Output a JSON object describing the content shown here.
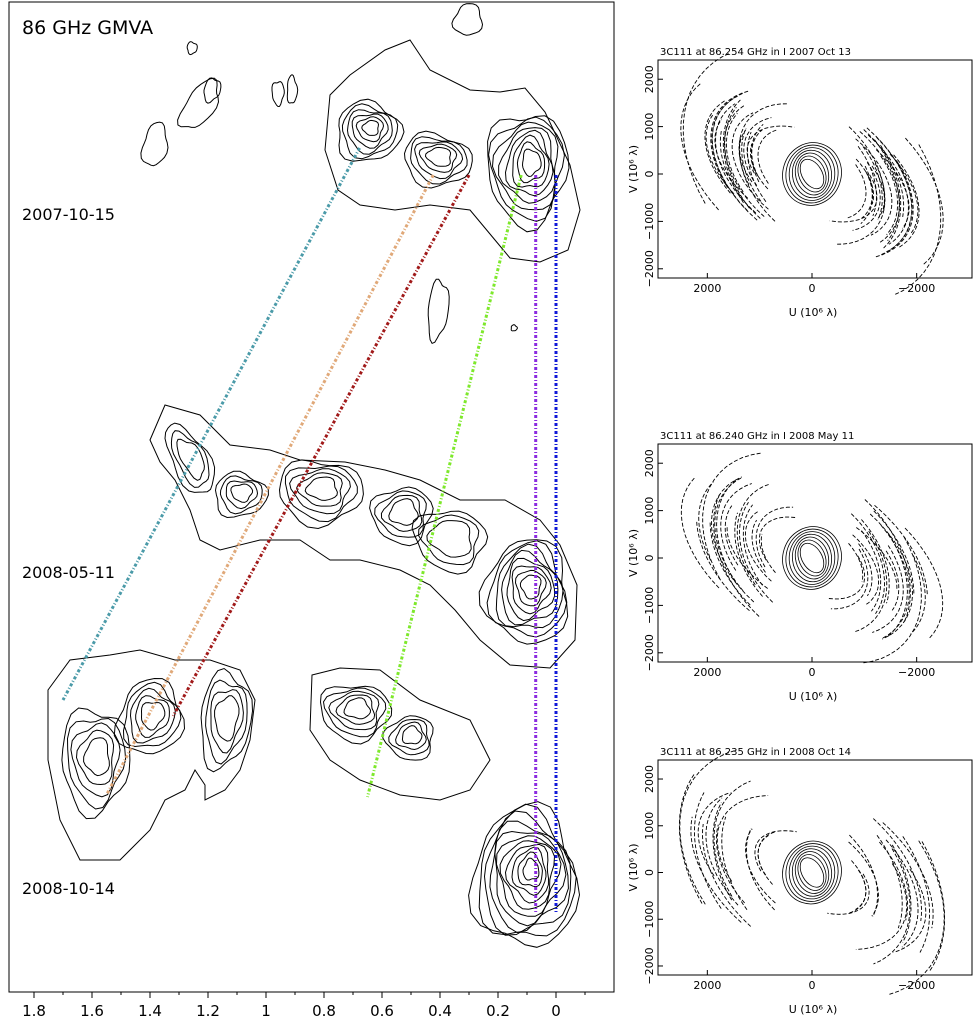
{
  "main": {
    "title": "86 GHz   GMVA",
    "epochs": [
      "2007-10-15",
      "2008-05-11",
      "2008-10-14"
    ],
    "x_ticks": [
      1.8,
      1.6,
      1.4,
      1.2,
      1,
      0.8,
      0.6,
      0.4,
      0.2,
      0
    ],
    "contour_color": "#000000"
  },
  "uv_panels": [
    {
      "title": "3C111 at 86.254 GHz in I  2007 Oct 13"
    },
    {
      "title": "3C111 at 86.240 GHz in I  2008 May 11"
    },
    {
      "title": "3C111 at 86.235 GHz in I  2008 Oct 14"
    }
  ],
  "uv_axes": {
    "xlabel": "U (10⁶ λ)",
    "ylabel": "V (10⁶ λ)",
    "x_ticks": [
      2000,
      0,
      -2000
    ],
    "y_ticks": [
      2000,
      1000,
      0,
      -1000,
      -2000
    ]
  },
  "chart_data": [
    {
      "type": "line",
      "description_key": "component tracks across epochs",
      "xlabel": "",
      "ylabel": "",
      "xlim": [
        1.85,
        -0.2
      ],
      "categories": [
        "2007-10-15",
        "2008-05-11",
        "2008-10-14"
      ],
      "series": [
        {
          "color": "#4a9aa8",
          "points": [
            [
              0.66,
              "2007-10-15"
            ],
            [
              1.7,
              "2008-10-14"
            ]
          ]
        },
        {
          "color": "#e0a878",
          "points": [
            [
              0.43,
              "2007-10-15"
            ],
            [
              1.55,
              "2008-10-14"
            ]
          ]
        },
        {
          "color": "#a01818",
          "points": [
            [
              0.3,
              "2007-10-15"
            ],
            [
              1.32,
              "2008-10-14"
            ]
          ]
        },
        {
          "color": "#7de82a",
          "points": [
            [
              0.12,
              "2007-10-15"
            ],
            [
              0.65,
              "2008-10-14"
            ]
          ]
        },
        {
          "color": "#8b2be0",
          "points": [
            [
              0.07,
              "2007-10-15"
            ],
            [
              0.07,
              "2008-10-14"
            ]
          ]
        },
        {
          "color": "#1018d8",
          "points": [
            [
              0.0,
              "2007-10-15"
            ],
            [
              0.0,
              "2008-10-14"
            ]
          ]
        }
      ]
    },
    {
      "type": "scatter",
      "title": "3C111 at 86.254 GHz in I  2007 Oct 13",
      "xlim": [
        3000,
        -3000
      ],
      "ylim": [
        -2200,
        2200
      ]
    },
    {
      "type": "scatter",
      "title": "3C111 at 86.240 GHz in I  2008 May 11",
      "xlim": [
        3000,
        -3000
      ],
      "ylim": [
        -2200,
        2200
      ]
    },
    {
      "type": "scatter",
      "title": "3C111 at 86.235 GHz in I  2008 Oct 14",
      "xlim": [
        3000,
        -3000
      ],
      "ylim": [
        -2200,
        2200
      ]
    }
  ]
}
